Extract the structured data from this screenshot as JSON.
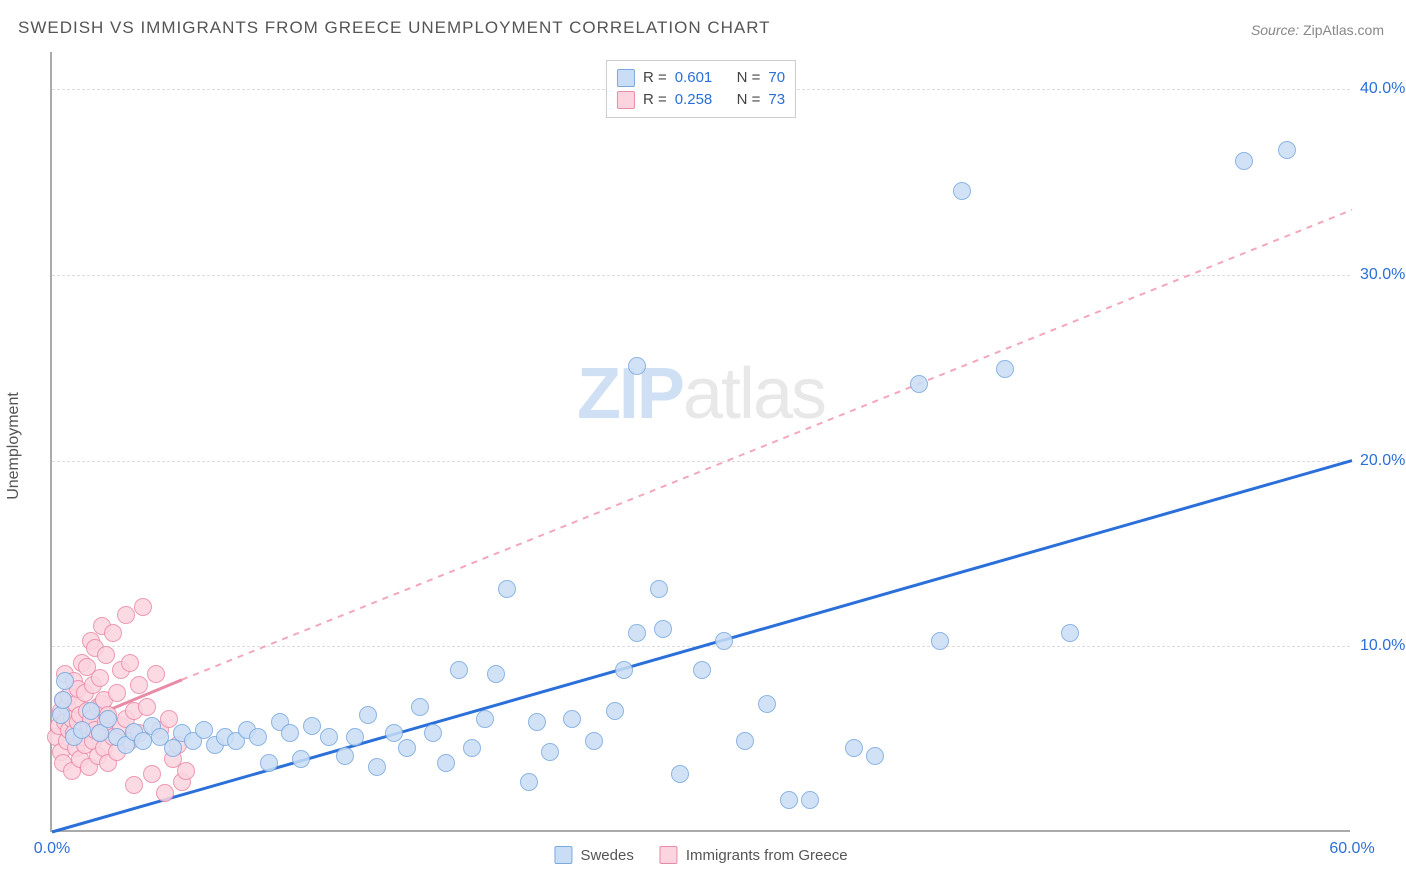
{
  "title": "SWEDISH VS IMMIGRANTS FROM GREECE UNEMPLOYMENT CORRELATION CHART",
  "source_label": "Source:",
  "source_value": "ZipAtlas.com",
  "ylabel": "Unemployment",
  "watermark_a": "ZIP",
  "watermark_b": "atlas",
  "chart": {
    "type": "scatter",
    "background_color": "#ffffff",
    "grid_color": "#dddddd",
    "axis_color": "#aaaaaa",
    "tick_color": "#2b6fd8",
    "label_color": "#555555",
    "xlim": [
      0,
      60
    ],
    "ylim": [
      0,
      42
    ],
    "xticks": [
      {
        "pos": 0,
        "label": "0.0%"
      },
      {
        "pos": 60,
        "label": "60.0%"
      }
    ],
    "yticks": [
      {
        "pos": 10,
        "label": "10.0%"
      },
      {
        "pos": 20,
        "label": "20.0%"
      },
      {
        "pos": 30,
        "label": "30.0%"
      },
      {
        "pos": 40,
        "label": "40.0%"
      }
    ],
    "marker_radius": 9,
    "marker_border_width": 1.5,
    "series": [
      {
        "key": "swedes",
        "label": "Swedes",
        "fill": "#c9def6",
        "stroke": "#7aa9de",
        "r_value": "0.601",
        "n_value": "70",
        "trend": {
          "x1": 0,
          "y1": 0.0,
          "x2": 60,
          "y2": 20.0,
          "width": 3,
          "dash": "none",
          "color": "#2b6fd8"
        },
        "points": [
          [
            0.4,
            6.2
          ],
          [
            0.5,
            7.0
          ],
          [
            0.6,
            8.0
          ],
          [
            1.0,
            5.0
          ],
          [
            1.4,
            5.4
          ],
          [
            1.8,
            6.4
          ],
          [
            2.2,
            5.2
          ],
          [
            2.6,
            6.0
          ],
          [
            3.0,
            5.0
          ],
          [
            3.4,
            4.6
          ],
          [
            3.8,
            5.3
          ],
          [
            4.2,
            4.8
          ],
          [
            4.6,
            5.6
          ],
          [
            5.0,
            5.0
          ],
          [
            5.6,
            4.4
          ],
          [
            6.0,
            5.2
          ],
          [
            6.5,
            4.8
          ],
          [
            7.0,
            5.4
          ],
          [
            7.5,
            4.6
          ],
          [
            8.0,
            5.0
          ],
          [
            8.5,
            4.8
          ],
          [
            9.0,
            5.4
          ],
          [
            9.5,
            5.0
          ],
          [
            10.0,
            3.6
          ],
          [
            10.5,
            5.8
          ],
          [
            11.0,
            5.2
          ],
          [
            11.5,
            3.8
          ],
          [
            12.0,
            5.6
          ],
          [
            12.8,
            5.0
          ],
          [
            13.5,
            4.0
          ],
          [
            14.0,
            5.0
          ],
          [
            14.6,
            6.2
          ],
          [
            15.0,
            3.4
          ],
          [
            15.8,
            5.2
          ],
          [
            16.4,
            4.4
          ],
          [
            17.0,
            6.6
          ],
          [
            17.6,
            5.2
          ],
          [
            18.2,
            3.6
          ],
          [
            18.8,
            8.6
          ],
          [
            19.4,
            4.4
          ],
          [
            20.0,
            6.0
          ],
          [
            20.5,
            8.4
          ],
          [
            21.0,
            13.0
          ],
          [
            22.0,
            2.6
          ],
          [
            22.4,
            5.8
          ],
          [
            23.0,
            4.2
          ],
          [
            24.0,
            6.0
          ],
          [
            25.0,
            4.8
          ],
          [
            26.0,
            6.4
          ],
          [
            26.4,
            8.6
          ],
          [
            27.0,
            10.6
          ],
          [
            28.2,
            10.8
          ],
          [
            28.0,
            13.0
          ],
          [
            29.0,
            3.0
          ],
          [
            30.0,
            8.6
          ],
          [
            31.0,
            10.2
          ],
          [
            32.0,
            4.8
          ],
          [
            33.0,
            6.8
          ],
          [
            34.0,
            1.6
          ],
          [
            35.0,
            1.6
          ],
          [
            37.0,
            4.4
          ],
          [
            38.0,
            4.0
          ],
          [
            40.0,
            24.0
          ],
          [
            41.0,
            10.2
          ],
          [
            42.0,
            34.4
          ],
          [
            44.0,
            24.8
          ],
          [
            47.0,
            10.6
          ],
          [
            55.0,
            36.0
          ],
          [
            57.0,
            36.6
          ],
          [
            27.0,
            25.0
          ]
        ]
      },
      {
        "key": "greece",
        "label": "Immigrants from Greece",
        "fill": "#fbd4df",
        "stroke": "#e98aa6",
        "r_value": "0.258",
        "n_value": "73",
        "trend": {
          "x1": 0,
          "y1": 5.3,
          "x2": 60,
          "y2": 33.5,
          "width": 2,
          "dash": "6 6",
          "color": "#f4a7bb",
          "solid_until_x": 6,
          "solid_y_at_until": 8.2
        },
        "points": [
          [
            0.2,
            5.0
          ],
          [
            0.3,
            5.6
          ],
          [
            0.4,
            6.4
          ],
          [
            0.4,
            4.2
          ],
          [
            0.5,
            7.0
          ],
          [
            0.5,
            3.6
          ],
          [
            0.6,
            5.8
          ],
          [
            0.6,
            8.4
          ],
          [
            0.7,
            6.6
          ],
          [
            0.7,
            4.8
          ],
          [
            0.8,
            5.4
          ],
          [
            0.8,
            7.2
          ],
          [
            0.9,
            6.0
          ],
          [
            0.9,
            3.2
          ],
          [
            1.0,
            8.0
          ],
          [
            1.0,
            5.2
          ],
          [
            1.1,
            6.8
          ],
          [
            1.1,
            4.4
          ],
          [
            1.2,
            7.6
          ],
          [
            1.2,
            5.8
          ],
          [
            1.3,
            6.2
          ],
          [
            1.3,
            3.8
          ],
          [
            1.4,
            9.0
          ],
          [
            1.4,
            5.0
          ],
          [
            1.5,
            7.4
          ],
          [
            1.5,
            4.6
          ],
          [
            1.6,
            6.4
          ],
          [
            1.6,
            8.8
          ],
          [
            1.7,
            5.6
          ],
          [
            1.7,
            3.4
          ],
          [
            1.8,
            10.2
          ],
          [
            1.8,
            6.0
          ],
          [
            1.9,
            4.8
          ],
          [
            1.9,
            7.8
          ],
          [
            2.0,
            5.4
          ],
          [
            2.0,
            9.8
          ],
          [
            2.1,
            6.6
          ],
          [
            2.1,
            4.0
          ],
          [
            2.2,
            8.2
          ],
          [
            2.2,
            5.2
          ],
          [
            2.3,
            11.0
          ],
          [
            2.3,
            6.8
          ],
          [
            2.4,
            4.4
          ],
          [
            2.4,
            7.0
          ],
          [
            2.5,
            5.8
          ],
          [
            2.5,
            9.4
          ],
          [
            2.6,
            6.2
          ],
          [
            2.6,
            3.6
          ],
          [
            2.8,
            10.6
          ],
          [
            2.8,
            5.0
          ],
          [
            3.0,
            7.4
          ],
          [
            3.0,
            4.2
          ],
          [
            3.2,
            8.6
          ],
          [
            3.2,
            5.6
          ],
          [
            3.4,
            6.0
          ],
          [
            3.4,
            11.6
          ],
          [
            3.6,
            4.8
          ],
          [
            3.6,
            9.0
          ],
          [
            3.8,
            6.4
          ],
          [
            3.8,
            2.4
          ],
          [
            4.0,
            7.8
          ],
          [
            4.0,
            5.2
          ],
          [
            4.2,
            12.0
          ],
          [
            4.4,
            6.6
          ],
          [
            4.6,
            3.0
          ],
          [
            4.8,
            8.4
          ],
          [
            5.0,
            5.4
          ],
          [
            5.2,
            2.0
          ],
          [
            5.4,
            6.0
          ],
          [
            5.6,
            3.8
          ],
          [
            5.8,
            4.6
          ],
          [
            6.0,
            2.6
          ],
          [
            6.2,
            3.2
          ]
        ]
      }
    ],
    "legend_top_labels": {
      "R": "R =",
      "N": "N ="
    }
  }
}
